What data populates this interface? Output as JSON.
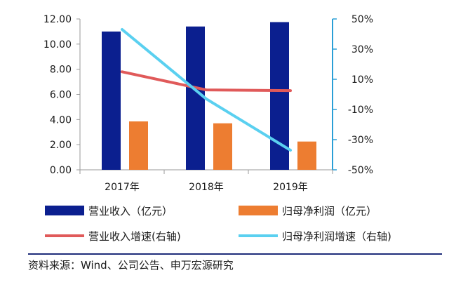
{
  "chart_data": {
    "type": "bar",
    "categories": [
      "2017年",
      "2018年",
      "2019年"
    ],
    "series": [
      {
        "name": "营业收入（亿元）",
        "kind": "bar",
        "axis": "left",
        "color": "#0b1f8f",
        "values": [
          11.0,
          11.4,
          11.75
        ]
      },
      {
        "name": "归母净利润（亿元）",
        "kind": "bar",
        "axis": "left",
        "color": "#ed7d31",
        "values": [
          3.85,
          3.7,
          2.25
        ]
      },
      {
        "name": "营业收入增速(右轴)",
        "kind": "line",
        "axis": "right",
        "color": "#e05a5a",
        "values": [
          15,
          3,
          2.5
        ]
      },
      {
        "name": "归母净利润增速（右轴)",
        "kind": "line",
        "axis": "right",
        "color": "#5ad0f0",
        "values": [
          43,
          -3,
          -37
        ]
      }
    ],
    "left_axis": {
      "min": 0,
      "max": 12,
      "step": 2,
      "tick_labels": [
        "0.00",
        "2.00",
        "4.00",
        "6.00",
        "8.00",
        "10.00",
        "12.00"
      ]
    },
    "right_axis": {
      "min": -50,
      "max": 50,
      "step": 20,
      "tick_labels": [
        "-50%",
        "-30%",
        "-10%",
        "10%",
        "30%",
        "50%"
      ]
    },
    "grid": false,
    "legend_position": "bottom",
    "axis_color": "#2a9fd6"
  },
  "source_text": "资料来源：Wind、公司公告、申万宏源研究",
  "source_line_color": "#1f2d7a"
}
